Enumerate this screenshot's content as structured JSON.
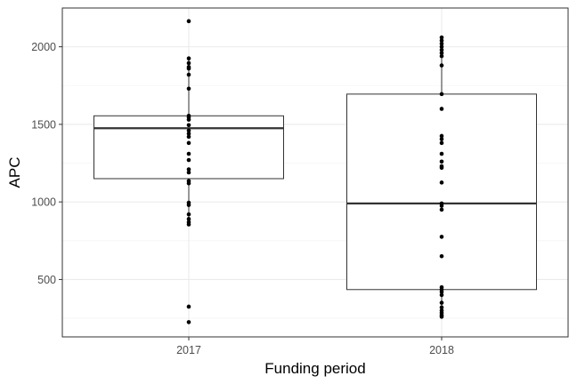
{
  "chart_data": {
    "type": "box",
    "title": "",
    "xlabel": "Funding period",
    "ylabel": "APC",
    "categories": [
      "2017",
      "2018"
    ],
    "ylim": [
      130,
      2250
    ],
    "yticks": [
      500,
      1000,
      1500,
      2000
    ],
    "grid": true,
    "legend": "none",
    "boxes": [
      {
        "category": "2017",
        "q1": 1150,
        "median": 1475,
        "q3": 1555,
        "whisker_low": 860,
        "whisker_high": 1925,
        "points": [
          2165,
          1925,
          1895,
          1870,
          1860,
          1820,
          1730,
          1555,
          1545,
          1530,
          1495,
          1460,
          1440,
          1420,
          1380,
          1310,
          1270,
          1210,
          1190,
          1135,
          1120,
          995,
          980,
          920,
          890,
          870,
          855,
          325,
          225
        ]
      },
      {
        "category": "2018",
        "q1": 435,
        "median": 990,
        "q3": 1695,
        "whisker_low": 260,
        "whisker_high": 2060,
        "points": [
          2060,
          2040,
          2020,
          2000,
          1980,
          1960,
          1940,
          1880,
          1695,
          1600,
          1425,
          1405,
          1380,
          1310,
          1260,
          1230,
          1220,
          1125,
          990,
          975,
          950,
          775,
          650,
          450,
          435,
          420,
          400,
          350,
          320,
          300,
          285,
          270,
          260
        ]
      }
    ]
  },
  "colors": {
    "panel_border": "#333333",
    "grid_major": "#ebebeb",
    "grid_minor": "#f5f5f5",
    "point": "#000000",
    "box_line": "#333333",
    "tick_label": "#4d4d4d",
    "axis_title": "#000000"
  }
}
